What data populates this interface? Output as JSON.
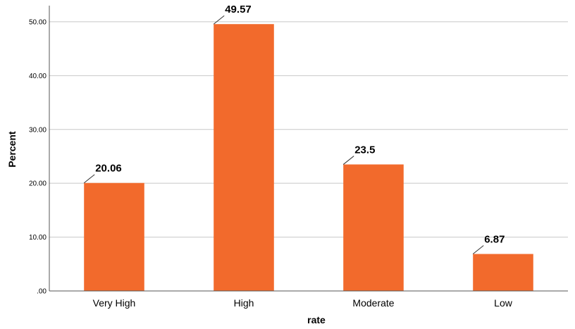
{
  "chart_data": {
    "type": "bar",
    "categories": [
      "Very High",
      "High",
      "Moderate",
      "Low"
    ],
    "values": [
      20.06,
      49.57,
      23.5,
      6.87
    ],
    "data_labels": [
      "20.06",
      "49.57",
      "23.5",
      "6.87"
    ],
    "title": "",
    "xlabel": "rate",
    "ylabel": "Percent",
    "ylim": [
      0,
      53
    ],
    "yticks": [
      0,
      10,
      20,
      30,
      40,
      50
    ],
    "ytick_labels": [
      ".00",
      "10.00",
      "20.00",
      "30.00",
      "40.00",
      "50.00"
    ],
    "grid": true,
    "legend": "none",
    "bar_color": "#f26a2c",
    "grid_color": "#c8c8c8",
    "axis_color": "#555555"
  }
}
